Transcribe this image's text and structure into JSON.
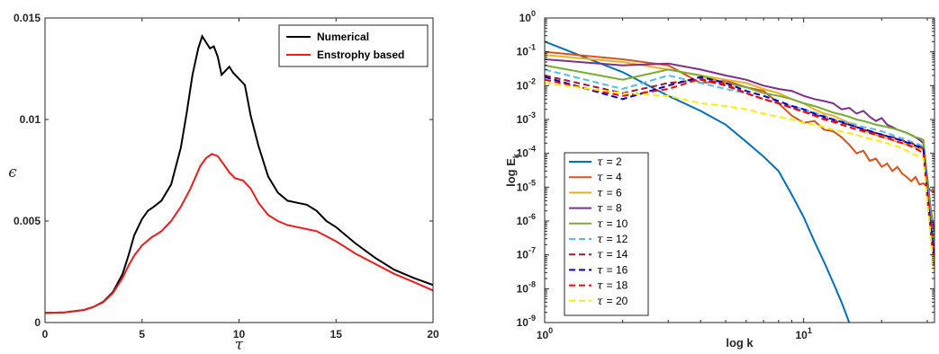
{
  "chart_data": [
    {
      "type": "line",
      "title": "",
      "xlabel": "τ",
      "ylabel": "ϵ",
      "xlim": [
        0,
        20
      ],
      "ylim": [
        0,
        0.015
      ],
      "xticks": [
        0,
        5,
        10,
        15,
        20
      ],
      "xtick_labels": [
        "0",
        "5",
        "10",
        "15",
        "20"
      ],
      "yticks": [
        0,
        0.005,
        0.01,
        0.015
      ],
      "ytick_labels": [
        "0",
        "0.005",
        "0.01",
        "0.015"
      ],
      "grid": false,
      "legend_position": "top-right",
      "series": [
        {
          "name": "Numerical",
          "color": "#000000",
          "x": [
            0,
            1,
            2,
            2.5,
            3,
            3.5,
            4,
            4.3,
            4.6,
            5,
            5.3,
            5.6,
            6,
            6.5,
            7,
            7.3,
            7.6,
            7.9,
            8.1,
            8.3,
            8.5,
            8.7,
            8.9,
            9.1,
            9.3,
            9.5,
            9.7,
            10,
            10.3,
            10.6,
            11,
            11.5,
            12,
            12.5,
            13,
            13.5,
            14,
            14.5,
            15,
            16,
            17,
            18,
            19,
            20
          ],
          "y": [
            0.00048,
            0.0005,
            0.00062,
            0.00077,
            0.00102,
            0.0015,
            0.0024,
            0.0033,
            0.0043,
            0.0051,
            0.0055,
            0.0057,
            0.006,
            0.0068,
            0.0086,
            0.0103,
            0.0122,
            0.0135,
            0.0141,
            0.0138,
            0.0135,
            0.0136,
            0.0131,
            0.0122,
            0.0124,
            0.0126,
            0.0123,
            0.012,
            0.0117,
            0.0102,
            0.0087,
            0.0072,
            0.0064,
            0.006,
            0.0059,
            0.0058,
            0.0055,
            0.005,
            0.0047,
            0.0039,
            0.0032,
            0.0026,
            0.0022,
            0.00185
          ]
        },
        {
          "name": "Enstrophy based",
          "color": "#ee1c1c",
          "x": [
            0,
            1,
            2,
            2.5,
            3,
            3.5,
            4,
            4.3,
            4.6,
            5,
            5.5,
            6,
            6.5,
            7,
            7.5,
            8,
            8.3,
            8.6,
            8.9,
            9.2,
            9.5,
            9.8,
            10.2,
            10.6,
            11,
            11.5,
            12,
            12.5,
            13,
            14,
            15,
            16,
            17,
            18,
            19,
            20
          ],
          "y": [
            0.00048,
            0.0005,
            0.00062,
            0.00077,
            0.001,
            0.00145,
            0.0022,
            0.0028,
            0.0033,
            0.0038,
            0.0042,
            0.0045,
            0.005,
            0.0057,
            0.0066,
            0.0077,
            0.0081,
            0.0083,
            0.0082,
            0.0078,
            0.0074,
            0.0071,
            0.007,
            0.0066,
            0.0059,
            0.0053,
            0.005,
            0.0048,
            0.0047,
            0.0045,
            0.004,
            0.0034,
            0.0029,
            0.0024,
            0.002,
            0.00158
          ]
        }
      ]
    },
    {
      "type": "line",
      "title": "",
      "xlabel": "log k",
      "ylabel": "log E",
      "ylabel_subscript": "k",
      "xscale": "log",
      "yscale": "log",
      "xlim": [
        1,
        32
      ],
      "ylim": [
        1e-09,
        1
      ],
      "xtick_labels": [
        {
          "base": "10",
          "exp": "0"
        },
        {
          "base": "10",
          "exp": "1"
        }
      ],
      "ytick_labels": [
        {
          "base": "10",
          "exp": "-9"
        },
        {
          "base": "10",
          "exp": "-8"
        },
        {
          "base": "10",
          "exp": "-7"
        },
        {
          "base": "10",
          "exp": "-6"
        },
        {
          "base": "10",
          "exp": "-5"
        },
        {
          "base": "10",
          "exp": "-4"
        },
        {
          "base": "10",
          "exp": "-3"
        },
        {
          "base": "10",
          "exp": "-2"
        },
        {
          "base": "10",
          "exp": "-1"
        },
        {
          "base": "10",
          "exp": "0"
        }
      ],
      "grid": false,
      "legend_position": "bottom-left",
      "x": [
        1,
        2,
        3,
        4,
        5,
        6,
        7,
        8,
        9,
        10,
        11,
        12,
        13,
        14,
        15,
        16,
        17,
        18,
        19,
        20,
        21,
        22,
        23,
        24,
        25,
        26,
        27,
        28,
        29,
        30,
        31,
        32
      ],
      "series": [
        {
          "name": "τ = 2",
          "label_symbol": "τ",
          "label_value": "= 2",
          "color": "#0072bd",
          "dashed": false,
          "x": [
            1,
            2,
            3,
            4,
            5,
            6,
            7,
            8,
            9,
            10,
            11,
            12,
            13,
            14,
            15
          ],
          "y": [
            0.2,
            0.025,
            0.005,
            0.0018,
            0.0007,
            0.00022,
            8e-05,
            3e-05,
            6e-06,
            1.3e-06,
            2.5e-07,
            6e-08,
            1.5e-08,
            4e-09,
            1e-09
          ]
        },
        {
          "name": "τ = 4",
          "label_symbol": "τ",
          "label_value": "= 4",
          "color": "#d95319",
          "dashed": false,
          "y": [
            0.1,
            0.06,
            0.04,
            0.012,
            0.014,
            0.009,
            0.007,
            0.003,
            0.0013,
            0.0008,
            0.0009,
            0.0005,
            0.00045,
            0.0003,
            0.00018,
            0.0001,
            0.00012,
            6e-05,
            7e-05,
            4e-05,
            5e-05,
            3e-05,
            4e-05,
            2.5e-05,
            2e-05,
            1.5e-05,
            2e-05,
            1.2e-05,
            1.3e-05,
            1e-05,
            8e-06,
            7e-06
          ]
        },
        {
          "name": "τ = 6",
          "label_symbol": "τ",
          "label_value": "= 6",
          "color": "#edb120",
          "dashed": false,
          "y": [
            0.08,
            0.05,
            0.03,
            0.02,
            0.015,
            0.012,
            0.008,
            0.006,
            0.004,
            0.003,
            0.002,
            0.0015,
            0.0013,
            0.001,
            0.0008,
            0.0006,
            0.0005,
            0.0004,
            0.00035,
            0.0003,
            0.00028,
            0.00025,
            0.00022,
            0.0002,
            0.00018,
            0.00017,
            0.00015,
            0.00014,
            0.00013,
            1.2e-05,
            2e-06,
            3e-07
          ]
        },
        {
          "name": "τ = 8",
          "label_symbol": "τ",
          "label_value": "= 8",
          "color": "#7e2f8e",
          "dashed": false,
          "y": [
            0.06,
            0.04,
            0.045,
            0.03,
            0.02,
            0.015,
            0.01,
            0.008,
            0.007,
            0.005,
            0.004,
            0.0035,
            0.003,
            0.002,
            0.0022,
            0.0015,
            0.0018,
            0.0012,
            0.0009,
            0.0011,
            0.0007,
            0.0006,
            0.0005,
            0.00045,
            0.0004,
            0.00035,
            0.0003,
            0.00025,
            0.0002,
            2e-05,
            2e-06,
            4e-07
          ]
        },
        {
          "name": "τ = 10",
          "label_symbol": "τ",
          "label_value": "= 10",
          "color": "#77ac30",
          "dashed": false,
          "y": [
            0.04,
            0.015,
            0.03,
            0.02,
            0.012,
            0.009,
            0.006,
            0.005,
            0.004,
            0.003,
            0.0025,
            0.002,
            0.0016,
            0.0014,
            0.0012,
            0.001,
            0.0009,
            0.0008,
            0.0007,
            0.00065,
            0.0006,
            0.00055,
            0.0005,
            0.00045,
            0.0004,
            0.00035,
            0.0003,
            0.00028,
            0.00025,
            1.5e-05,
            1.5e-06,
            2e-07
          ]
        },
        {
          "name": "τ = 12",
          "label_symbol": "τ",
          "label_value": "= 12",
          "color": "#4dbeee",
          "dashed": true,
          "y": [
            0.03,
            0.008,
            0.02,
            0.012,
            0.008,
            0.006,
            0.004,
            0.003,
            0.0025,
            0.002,
            0.0016,
            0.0013,
            0.001,
            0.0009,
            0.0008,
            0.0007,
            0.0006,
            0.00055,
            0.0005,
            0.00045,
            0.0004,
            0.00035,
            0.0003,
            0.00028,
            0.00025,
            0.00022,
            0.0002,
            0.00018,
            0.00016,
            1e-05,
            1e-06,
            1e-07
          ]
        },
        {
          "name": "τ = 14",
          "label_symbol": "τ",
          "label_value": "= 14",
          "color": "#a2142f",
          "dashed": true,
          "y": [
            0.02,
            0.006,
            0.012,
            0.015,
            0.01,
            0.006,
            0.004,
            0.003,
            0.0022,
            0.0017,
            0.0014,
            0.0011,
            0.0009,
            0.0008,
            0.0007,
            0.0006,
            0.0005,
            0.00045,
            0.0004,
            0.00036,
            0.00032,
            0.0003,
            0.00027,
            0.00024,
            0.00022,
            0.0002,
            0.00018,
            0.00016,
            0.00014,
            8e-06,
            8e-07,
            8e-08
          ]
        },
        {
          "name": "τ = 16",
          "label_symbol": "τ",
          "label_value": "= 16",
          "color": "#0000cc",
          "dashed": true,
          "y": [
            0.018,
            0.004,
            0.01,
            0.018,
            0.012,
            0.007,
            0.005,
            0.0035,
            0.0025,
            0.002,
            0.0015,
            0.0012,
            0.001,
            0.00085,
            0.0007,
            0.0006,
            0.00052,
            0.00046,
            0.0004,
            0.00036,
            0.00032,
            0.00029,
            0.00026,
            0.00023,
            0.00021,
            0.00019,
            0.00017,
            0.00015,
            0.00013,
            6e-06,
            6e-07,
            6e-08
          ]
        },
        {
          "name": "τ = 18",
          "label_symbol": "τ",
          "label_value": "= 18",
          "color": "#ff0000",
          "dashed": true,
          "y": [
            0.015,
            0.005,
            0.008,
            0.016,
            0.011,
            0.006,
            0.004,
            0.003,
            0.0022,
            0.0017,
            0.0013,
            0.001,
            0.00085,
            0.0007,
            0.0006,
            0.0005,
            0.00045,
            0.0004,
            0.00035,
            0.00031,
            0.00028,
            0.00025,
            0.00022,
            0.0002,
            0.00018,
            0.00016,
            0.00014,
            0.00012,
            0.0001,
            5e-06,
            4e-07,
            4e-08
          ]
        },
        {
          "name": "τ = 20",
          "label_symbol": "τ",
          "label_value": "= 20",
          "color": "#ffee00",
          "dashed": true,
          "y": [
            0.012,
            0.006,
            0.005,
            0.003,
            0.0025,
            0.002,
            0.0015,
            0.0012,
            0.001,
            0.0008,
            0.0007,
            0.0006,
            0.0005,
            0.00045,
            0.0004,
            0.00035,
            0.0003,
            0.00027,
            0.00024,
            0.00022,
            0.0002,
            0.00018,
            0.00016,
            0.00014,
            0.00012,
            0.0001,
            9e-05,
            8e-05,
            7e-05,
            4e-06,
            3e-07,
            3e-08
          ]
        }
      ]
    }
  ]
}
